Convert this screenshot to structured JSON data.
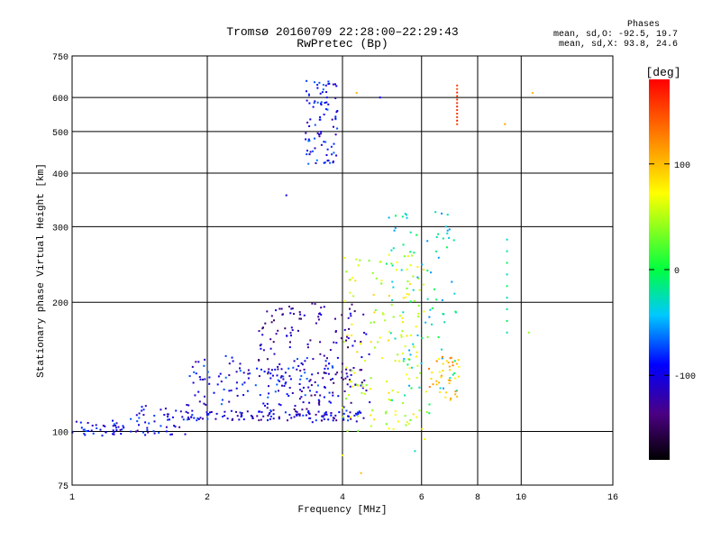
{
  "header": {
    "title_line1": "Tromsø 20160709 22:28:00–22:29:43",
    "title_line2": "RwPretec (Bp)",
    "stats_title": "Phases",
    "stats_o": "mean, sd,O: -92.5, 19.7",
    "stats_x": "mean, sd,X:  93.8, 24.6"
  },
  "colorbar": {
    "label": "[deg]",
    "ticks": [
      {
        "value": 100,
        "label": "100"
      },
      {
        "value": 0,
        "label": "0"
      },
      {
        "value": -100,
        "label": "-100"
      }
    ],
    "range": [
      -180,
      180
    ]
  },
  "chart_data": {
    "type": "scatter",
    "xlabel": "Frequency [MHz]",
    "ylabel": "Stationary phase Virtual Height [km]",
    "x_scale": "log",
    "y_scale": "log",
    "xlim": [
      1,
      16
    ],
    "ylim": [
      75,
      750
    ],
    "x_ticks": [
      1,
      2,
      4,
      6,
      8,
      10,
      16
    ],
    "y_ticks": [
      75,
      100,
      200,
      300,
      400,
      500,
      600,
      750
    ],
    "grid": true,
    "clusters": [
      {
        "x": [
          1.0,
          1.3
        ],
        "y": [
          97,
          106
        ],
        "phase": -95,
        "n": 40
      },
      {
        "x": [
          1.3,
          1.8
        ],
        "y": [
          98,
          115
        ],
        "phase": -100,
        "n": 50
      },
      {
        "x": [
          1.8,
          4.4
        ],
        "y": [
          106,
          112
        ],
        "phase": -100,
        "n": 110
      },
      {
        "x": [
          1.8,
          4.0
        ],
        "y": [
          115,
          150
        ],
        "phase": -95,
        "n": 130
      },
      {
        "x": [
          2.6,
          4.6
        ],
        "y": [
          105,
          200
        ],
        "phase": -120,
        "n": 190
      },
      {
        "x": [
          3.3,
          3.9
        ],
        "y": [
          420,
          660
        ],
        "phase": -90,
        "n": 90
      },
      {
        "x": [
          4.0,
          6.2
        ],
        "y": [
          100,
          260
        ],
        "phase": 60,
        "n": 150
      },
      {
        "x": [
          5.0,
          7.2
        ],
        "y": [
          110,
          330
        ],
        "phase": -30,
        "n": 90
      },
      {
        "x": [
          6.2,
          7.3
        ],
        "y": [
          118,
          150
        ],
        "phase": 100,
        "n": 40
      }
    ],
    "columns": [
      {
        "x": 7.2,
        "y": [
          520,
          640
        ],
        "phase": 160,
        "n": 12
      },
      {
        "x": 9.3,
        "y": [
          170,
          280
        ],
        "phase": -20,
        "n": 9
      }
    ],
    "isolated_points": [
      {
        "x": 10.6,
        "y": 615,
        "phase": 100
      },
      {
        "x": 9.2,
        "y": 520,
        "phase": 110
      },
      {
        "x": 10.4,
        "y": 170,
        "phase": 40
      },
      {
        "x": 4.85,
        "y": 600,
        "phase": -90
      },
      {
        "x": 4.3,
        "y": 615,
        "phase": 100
      },
      {
        "x": 3.0,
        "y": 355,
        "phase": -100
      },
      {
        "x": 6.1,
        "y": 96,
        "phase": 70
      },
      {
        "x": 5.8,
        "y": 90,
        "phase": -30
      },
      {
        "x": 4.4,
        "y": 80,
        "phase": 100
      },
      {
        "x": 4.0,
        "y": 88,
        "phase": 80
      }
    ]
  }
}
